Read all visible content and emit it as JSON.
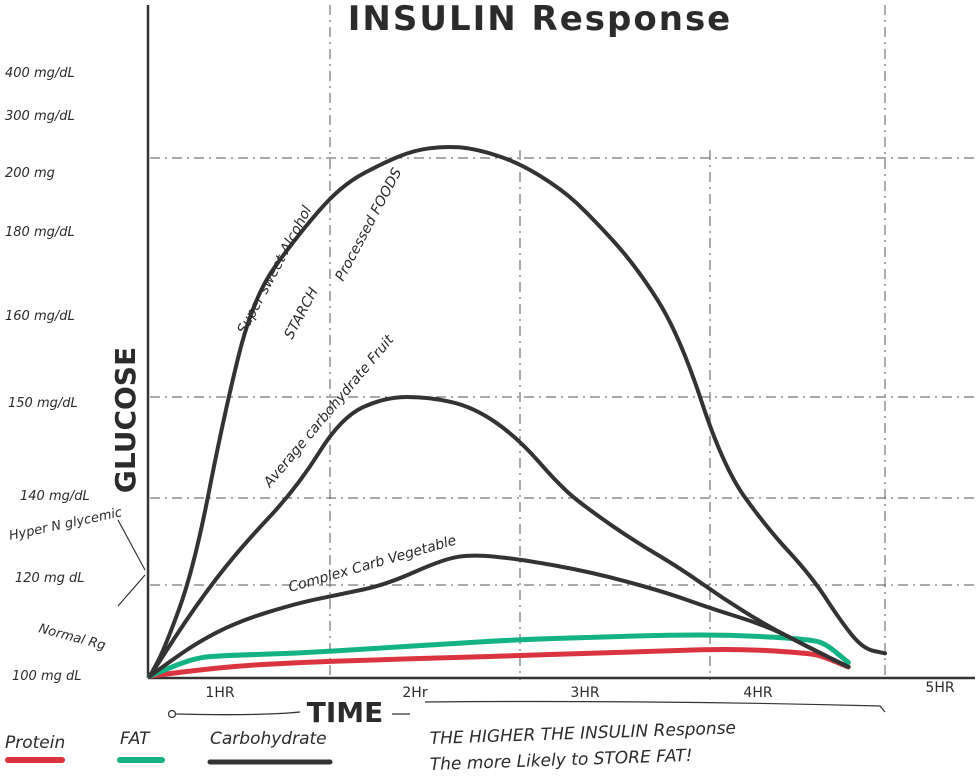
{
  "chart_data": {
    "type": "line",
    "title": "INSULIN Response",
    "xlabel": "TIME",
    "ylabel": "GLUCOSE",
    "x_tick_labels": [
      "1HR",
      "2Hr",
      "3HR",
      "4HR",
      "5HR"
    ],
    "y_tick_labels": [
      "100 mg dL",
      "120 mg dL",
      "140 mg/dL",
      "150 mg/dL",
      "160 mg/dL",
      "180 mg/dL",
      "200 mg",
      "300 mg/dL",
      "400 mg/dL"
    ],
    "y_annotations": [
      "Hyper N glycemic",
      "Normal Rg"
    ],
    "curve_labels": {
      "high": [
        "Super sweet Alcohol",
        "STARCH",
        "Processed FOODS"
      ],
      "average": "Average carbohydrate Fruit",
      "complex": "Complex Carb Vegetable"
    },
    "series": [
      {
        "name": "Protein",
        "color": "#d9343f",
        "points": [
          [
            0,
            100
          ],
          [
            0.5,
            102
          ],
          [
            1,
            103
          ],
          [
            1.5,
            103.5
          ],
          [
            2,
            104
          ],
          [
            2.5,
            104.5
          ],
          [
            3,
            105
          ],
          [
            3.5,
            105.5
          ],
          [
            4,
            106
          ],
          [
            4.5,
            105
          ],
          [
            4.6,
            104
          ],
          [
            4.75,
            102
          ]
        ]
      },
      {
        "name": "FAT",
        "color": "#13b386",
        "points": [
          [
            0,
            100
          ],
          [
            0.3,
            104
          ],
          [
            0.5,
            104.5
          ],
          [
            1,
            105
          ],
          [
            1.5,
            106
          ],
          [
            2,
            107
          ],
          [
            2.5,
            108
          ],
          [
            3,
            108.5
          ],
          [
            3.5,
            109
          ],
          [
            4,
            109
          ],
          [
            4.5,
            108
          ],
          [
            4.6,
            107
          ],
          [
            4.75,
            103
          ]
        ]
      },
      {
        "name": "Carbohydrate",
        "color": "#333333",
        "id": "high",
        "points": [
          [
            0,
            100
          ],
          [
            0.1,
            106
          ],
          [
            0.3,
            124
          ],
          [
            0.5,
            148
          ],
          [
            0.7,
            165
          ],
          [
            1,
            180
          ],
          [
            1.3,
            193
          ],
          [
            1.6,
            199
          ],
          [
            1.8,
            202
          ],
          [
            2,
            203
          ],
          [
            2.2,
            202.5
          ],
          [
            2.5,
            199
          ],
          [
            2.8,
            192
          ],
          [
            3,
            185
          ],
          [
            3.3,
            173
          ],
          [
            3.6,
            158
          ],
          [
            3.9,
            143
          ],
          [
            4.2,
            133
          ],
          [
            4.5,
            122
          ],
          [
            4.7,
            112
          ],
          [
            4.85,
            106
          ],
          [
            5,
            105
          ]
        ]
      },
      {
        "name": "Carbohydrate",
        "color": "#333333",
        "id": "average",
        "points": [
          [
            0,
            100
          ],
          [
            0.3,
            115
          ],
          [
            0.6,
            128
          ],
          [
            1,
            141
          ],
          [
            1.3,
            148
          ],
          [
            1.6,
            150
          ],
          [
            1.9,
            150
          ],
          [
            2.2,
            149
          ],
          [
            2.5,
            146
          ],
          [
            2.8,
            141
          ],
          [
            3,
            137
          ],
          [
            3.3,
            130
          ],
          [
            3.6,
            124
          ],
          [
            3.9,
            117
          ],
          [
            4.2,
            111
          ],
          [
            4.5,
            106
          ],
          [
            4.75,
            102
          ]
        ]
      },
      {
        "name": "Carbohydrate",
        "color": "#333333",
        "id": "complex",
        "points": [
          [
            0,
            100
          ],
          [
            0.3,
            107
          ],
          [
            0.6,
            112
          ],
          [
            1,
            116
          ],
          [
            1.3,
            118
          ],
          [
            1.6,
            120
          ],
          [
            2,
            126
          ],
          [
            2.2,
            127
          ],
          [
            2.5,
            126
          ],
          [
            3,
            123
          ],
          [
            3.5,
            118.5
          ],
          [
            3.8,
            115
          ],
          [
            4.2,
            111
          ],
          [
            4.5,
            106
          ],
          [
            4.75,
            102
          ]
        ]
      }
    ],
    "legend": [
      {
        "label": "Protein",
        "color": "#d9343f"
      },
      {
        "label": "FAT",
        "color": "#13b386"
      },
      {
        "label": "Carbohydrate",
        "color": "#333333"
      }
    ],
    "note": [
      "THE HIGHER THE INSULIN Response",
      "The more Likely to STORE FAT!"
    ],
    "grid": true,
    "xlim": [
      0,
      5
    ],
    "legend_position": "bottom-left"
  }
}
